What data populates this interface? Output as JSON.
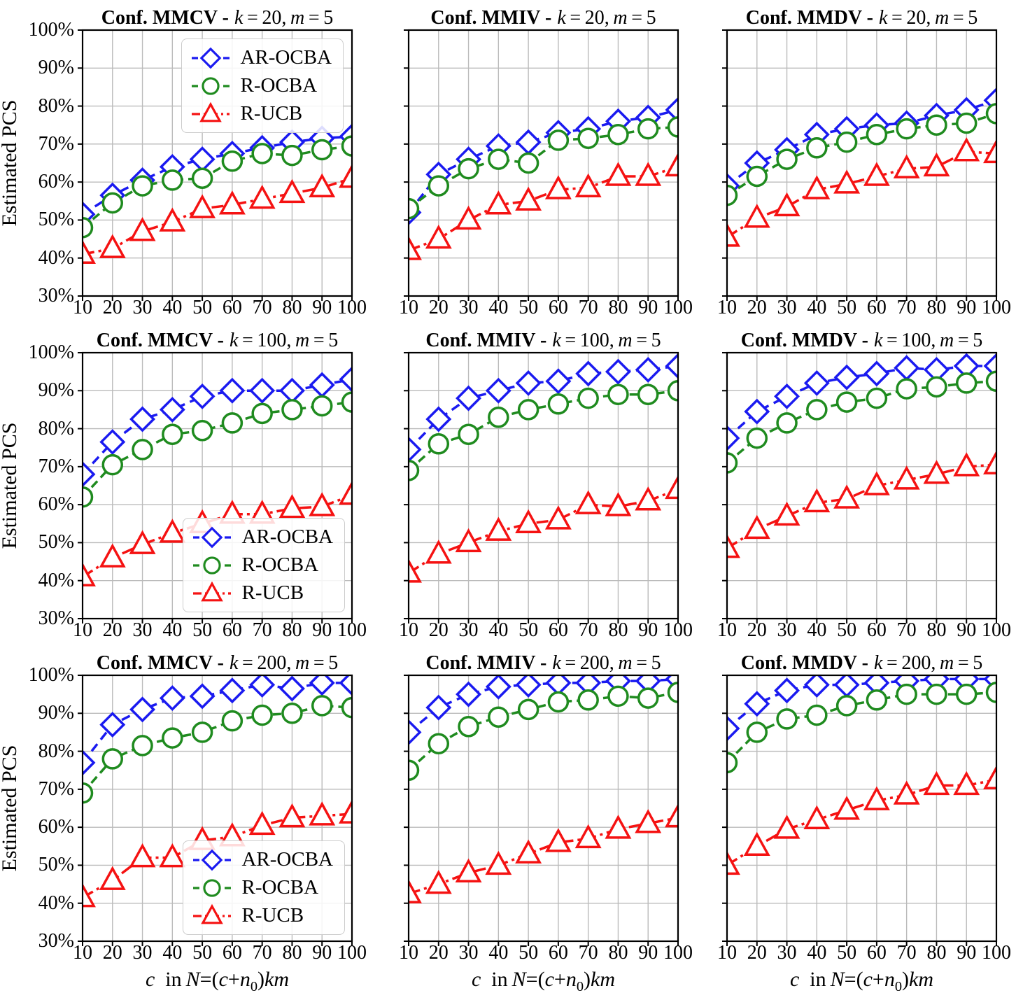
{
  "figure": {
    "ylabel": "Estimated PCS",
    "xlabel_text": "c in N=(c+n0)km",
    "xlabel_parts": [
      {
        "t": "c",
        "i": true
      },
      {
        "t": " in ",
        "i": false
      },
      {
        "t": "N",
        "i": true
      },
      {
        "t": "=(",
        "i": false
      },
      {
        "t": "c",
        "i": true
      },
      {
        "t": "+",
        "i": false
      },
      {
        "t": "n",
        "i": true
      },
      {
        "t": "0",
        "sub": true
      },
      {
        "t": ")",
        "i": false
      },
      {
        "t": "km",
        "i": true
      }
    ],
    "x_tick_labels": [
      "10",
      "20",
      "30",
      "40",
      "50",
      "60",
      "70",
      "80",
      "90",
      "100"
    ],
    "y_tick_labels": [
      "100%",
      "90%",
      "80%",
      "70%",
      "60%",
      "50%",
      "40%",
      "30%"
    ],
    "colors": {
      "AR-OCBA": "#1a1af0",
      "R-OCBA": "#1f8b1f",
      "R-UCB": "#f51212"
    },
    "series_meta": [
      {
        "name": "AR-OCBA",
        "key": "AR-OCBA",
        "color": "#1a1af0",
        "marker": "diamond",
        "dash": "13 8"
      },
      {
        "name": "R-OCBA",
        "key": "R-OCBA",
        "color": "#1f8b1f",
        "marker": "circle",
        "dash": "12 7"
      },
      {
        "name": "R-UCB",
        "key": "R-UCB",
        "color": "#f51212",
        "marker": "triangle",
        "dash": "17 6 4 6"
      }
    ],
    "legend_labels": [
      "AR-OCBA",
      "R-OCBA",
      "R-UCB"
    ]
  },
  "chart_data": [
    {
      "type": "line",
      "title": "Conf. MMCV - k=20, m=5",
      "conf": "MMCV",
      "k": "20",
      "m": "5",
      "xlim": [
        10,
        100
      ],
      "ylim": [
        30,
        100
      ],
      "grid": true,
      "legend": "top-right",
      "x": [
        10,
        20,
        30,
        40,
        50,
        60,
        70,
        80,
        90,
        100
      ],
      "series": [
        {
          "name": "AR-OCBA",
          "values": [
            51.5,
            56.5,
            60.5,
            64,
            66,
            67.5,
            69,
            70.5,
            71.5,
            72
          ]
        },
        {
          "name": "R-OCBA",
          "values": [
            48,
            54.5,
            59,
            60.5,
            61,
            65.5,
            67.5,
            67,
            68.5,
            69.5
          ]
        },
        {
          "name": "R-UCB",
          "values": [
            41,
            42.5,
            47,
            49.5,
            53,
            54,
            55.5,
            57,
            58.5,
            61
          ]
        }
      ]
    },
    {
      "type": "line",
      "title": "Conf. MMIV - k=20, m=5",
      "conf": "MMIV",
      "k": "20",
      "m": "5",
      "xlim": [
        10,
        100
      ],
      "ylim": [
        30,
        100
      ],
      "grid": true,
      "legend": null,
      "x": [
        10,
        20,
        30,
        40,
        50,
        60,
        70,
        80,
        90,
        100
      ],
      "series": [
        {
          "name": "AR-OCBA",
          "values": [
            52,
            62,
            66,
            69.5,
            70.5,
            73,
            74,
            76,
            77,
            79
          ]
        },
        {
          "name": "R-OCBA",
          "values": [
            53,
            59,
            63.5,
            66,
            65,
            71,
            71.5,
            72.5,
            74,
            74.5
          ]
        },
        {
          "name": "R-UCB",
          "values": [
            42,
            45,
            50,
            54,
            55,
            58,
            58.5,
            61.5,
            61.5,
            64
          ]
        }
      ]
    },
    {
      "type": "line",
      "title": "Conf. MMDV - k=20, m=5",
      "conf": "MMDV",
      "k": "20",
      "m": "5",
      "xlim": [
        10,
        100
      ],
      "ylim": [
        30,
        100
      ],
      "grid": true,
      "legend": null,
      "x": [
        10,
        20,
        30,
        40,
        50,
        60,
        70,
        80,
        90,
        100
      ],
      "series": [
        {
          "name": "AR-OCBA",
          "values": [
            59,
            65,
            68.5,
            72.5,
            74,
            75,
            75.5,
            77.5,
            79,
            81.5
          ]
        },
        {
          "name": "R-OCBA",
          "values": [
            56.5,
            61.5,
            66,
            69,
            70.5,
            72.5,
            74,
            75,
            75.5,
            78
          ]
        },
        {
          "name": "R-UCB",
          "values": [
            45.5,
            50.5,
            53.5,
            58,
            59.5,
            61.5,
            63.5,
            64,
            68,
            67.5
          ]
        }
      ]
    },
    {
      "type": "line",
      "title": "Conf. MMCV - k=100, m=5",
      "conf": "MMCV",
      "k": "100",
      "m": "5",
      "xlim": [
        10,
        100
      ],
      "ylim": [
        30,
        100
      ],
      "grid": true,
      "legend": "bottom-right",
      "x": [
        10,
        20,
        30,
        40,
        50,
        60,
        70,
        80,
        90,
        100
      ],
      "series": [
        {
          "name": "AR-OCBA",
          "values": [
            68,
            76.5,
            82.5,
            85,
            88.5,
            90,
            90,
            90,
            91.5,
            93
          ]
        },
        {
          "name": "R-OCBA",
          "values": [
            62,
            70.5,
            74.5,
            78.5,
            79.5,
            81.5,
            84,
            85,
            86,
            87
          ]
        },
        {
          "name": "R-UCB",
          "values": [
            41,
            46,
            49.5,
            52.5,
            55,
            57.5,
            57.5,
            59,
            59.5,
            62.5
          ]
        }
      ]
    },
    {
      "type": "line",
      "title": "Conf. MMIV - k=100, m=5",
      "conf": "MMIV",
      "k": "100",
      "m": "5",
      "xlim": [
        10,
        100
      ],
      "ylim": [
        30,
        100
      ],
      "grid": true,
      "legend": null,
      "x": [
        10,
        20,
        30,
        40,
        50,
        60,
        70,
        80,
        90,
        100
      ],
      "series": [
        {
          "name": "AR-OCBA",
          "values": [
            74.5,
            82.5,
            88,
            90,
            92,
            92.5,
            94.5,
            95,
            95.5,
            96.5
          ]
        },
        {
          "name": "R-OCBA",
          "values": [
            69,
            76,
            78.5,
            83,
            85,
            86.5,
            88,
            89,
            89,
            90
          ]
        },
        {
          "name": "R-UCB",
          "values": [
            42,
            47,
            50,
            53,
            55,
            56,
            60,
            59.5,
            61,
            64
          ]
        }
      ]
    },
    {
      "type": "line",
      "title": "Conf. MMDV - k=100, m=5",
      "conf": "MMDV",
      "k": "100",
      "m": "5",
      "xlim": [
        10,
        100
      ],
      "ylim": [
        30,
        100
      ],
      "grid": true,
      "legend": null,
      "x": [
        10,
        20,
        30,
        40,
        50,
        60,
        70,
        80,
        90,
        100
      ],
      "series": [
        {
          "name": "AR-OCBA",
          "values": [
            77.5,
            84.5,
            88.5,
            92,
            93.5,
            94.5,
            96,
            95.5,
            96.5,
            96.5
          ]
        },
        {
          "name": "R-OCBA",
          "values": [
            71,
            77.5,
            81.5,
            85,
            87,
            88,
            90.5,
            91,
            92,
            92.5
          ]
        },
        {
          "name": "R-UCB",
          "values": [
            48.5,
            53.5,
            57,
            60.5,
            61.5,
            65,
            66.5,
            68,
            70,
            70.5
          ]
        }
      ]
    },
    {
      "type": "line",
      "title": "Conf. MMCV - k=200, m=5",
      "conf": "MMCV",
      "k": "200",
      "m": "5",
      "xlim": [
        10,
        100
      ],
      "ylim": [
        30,
        100
      ],
      "grid": true,
      "legend": "bottom-right",
      "x": [
        10,
        20,
        30,
        40,
        50,
        60,
        70,
        80,
        90,
        100
      ],
      "series": [
        {
          "name": "AR-OCBA",
          "values": [
            77,
            87,
            91,
            94,
            94.5,
            96,
            97.5,
            96.5,
            98,
            98
          ]
        },
        {
          "name": "R-OCBA",
          "values": [
            69,
            78,
            81.5,
            83.5,
            85,
            88,
            89.5,
            90,
            92,
            91.5
          ]
        },
        {
          "name": "R-UCB",
          "values": [
            41.5,
            46,
            52,
            52,
            56.5,
            57.5,
            60.5,
            62.5,
            63,
            63.5
          ]
        }
      ]
    },
    {
      "type": "line",
      "title": "Conf. MMIV - k=200, m=5",
      "conf": "MMIV",
      "k": "200",
      "m": "5",
      "xlim": [
        10,
        100
      ],
      "ylim": [
        30,
        100
      ],
      "grid": true,
      "legend": null,
      "x": [
        10,
        20,
        30,
        40,
        50,
        60,
        70,
        80,
        90,
        100
      ],
      "series": [
        {
          "name": "AR-OCBA",
          "values": [
            85,
            91.5,
            95,
            97,
            97.5,
            98,
            98,
            98.5,
            98.5,
            99
          ]
        },
        {
          "name": "R-OCBA",
          "values": [
            75,
            82,
            86.5,
            89,
            91,
            93,
            93.5,
            94.5,
            94,
            95.5
          ]
        },
        {
          "name": "R-UCB",
          "values": [
            42.5,
            45,
            48,
            50,
            53,
            56,
            57,
            59.5,
            61,
            62.5
          ]
        }
      ]
    },
    {
      "type": "line",
      "title": "Conf. MMDV - k=200, m=5",
      "conf": "MMDV",
      "k": "200",
      "m": "5",
      "xlim": [
        10,
        100
      ],
      "ylim": [
        30,
        100
      ],
      "grid": true,
      "legend": null,
      "x": [
        10,
        20,
        30,
        40,
        50,
        60,
        70,
        80,
        90,
        100
      ],
      "series": [
        {
          "name": "AR-OCBA",
          "values": [
            86,
            92.5,
            96,
            97.5,
            97.5,
            98,
            98.5,
            99,
            99,
            99
          ]
        },
        {
          "name": "R-OCBA",
          "values": [
            77,
            85,
            88.5,
            89.5,
            92,
            93.5,
            95,
            95,
            95,
            95.5
          ]
        },
        {
          "name": "R-UCB",
          "values": [
            50,
            55,
            59.5,
            62,
            64.5,
            67,
            68.5,
            71,
            71,
            72.5
          ]
        }
      ]
    }
  ]
}
